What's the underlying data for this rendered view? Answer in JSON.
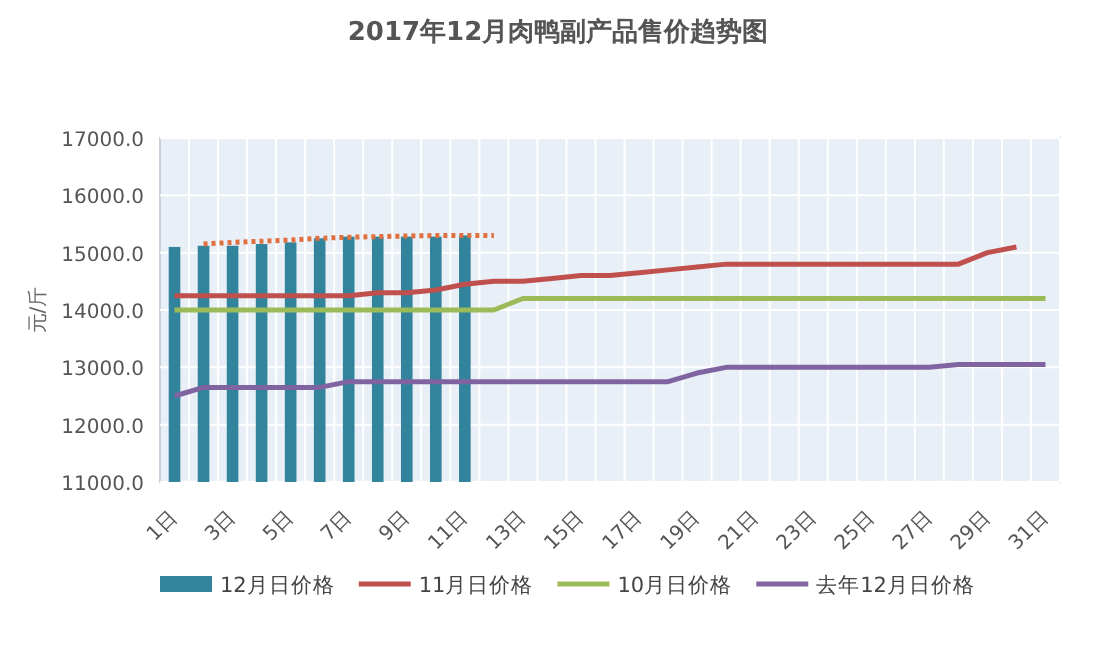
{
  "chart_data": {
    "type": "bar",
    "title": "2017年12月肉鸭副产品售价趋势图",
    "ylabel": "元/斤",
    "categories": [
      "1日",
      null,
      "3日",
      null,
      "5日",
      null,
      "7日",
      null,
      "9日",
      null,
      "11日",
      null,
      "13日",
      null,
      "15日",
      null,
      "17日",
      null,
      "19日",
      null,
      "21日",
      null,
      "23日",
      null,
      "25日",
      null,
      "27日",
      null,
      "29日",
      null,
      "31日"
    ],
    "series": [
      {
        "name": "12月日价格",
        "color": "#31849b",
        "values": [
          15100,
          15120,
          15120,
          15150,
          15180,
          15250,
          15280,
          15280,
          15280,
          15280,
          15300,
          null,
          null,
          null,
          null,
          null,
          null,
          null,
          null,
          null,
          null,
          null,
          null,
          null,
          null,
          null,
          null,
          null,
          null,
          null,
          null
        ]
      },
      {
        "name": "11月日价格",
        "type": "line",
        "color": "#c0504d",
        "values": [
          14250,
          14250,
          14250,
          14250,
          14250,
          14250,
          14250,
          14300,
          14300,
          14350,
          14450,
          14500,
          14500,
          14550,
          14600,
          14600,
          14650,
          14700,
          14750,
          14800,
          14800,
          14800,
          14800,
          14800,
          14800,
          14800,
          14800,
          14800,
          15000,
          15100,
          null
        ]
      },
      {
        "name": "10月日价格",
        "type": "line",
        "color": "#9bbb59",
        "values": [
          14000,
          14000,
          14000,
          14000,
          14000,
          14000,
          14000,
          14000,
          14000,
          14000,
          14000,
          14000,
          14200,
          14200,
          14200,
          14200,
          14200,
          14200,
          14200,
          14200,
          14200,
          14200,
          14200,
          14200,
          14200,
          14200,
          14200,
          14200,
          14200,
          14200,
          14200
        ]
      },
      {
        "name": "去年12月日价格",
        "type": "line",
        "color": "#8064a2",
        "values": [
          12500,
          12650,
          12650,
          12650,
          12650,
          12650,
          12750,
          12750,
          12750,
          12750,
          12750,
          12750,
          12750,
          12750,
          12750,
          12750,
          12750,
          12750,
          12900,
          13000,
          13000,
          13000,
          13000,
          13000,
          13000,
          13000,
          13000,
          13050,
          13050,
          13050,
          13050
        ]
      },
      {
        "type": "line",
        "line_style": "dotted",
        "color": "#e07040",
        "values": [
          null,
          15150,
          15180,
          15200,
          15220,
          15250,
          15270,
          15280,
          15290,
          15300,
          15300,
          15300,
          null,
          null,
          null,
          null,
          null,
          null,
          null,
          null,
          null,
          null,
          null,
          null,
          null,
          null,
          null,
          null,
          null,
          null,
          null
        ]
      }
    ],
    "ylim": [
      11000,
      17000
    ],
    "yticks": [
      {
        "value": 11000,
        "label": "11000.0"
      },
      {
        "value": 12000,
        "label": "12000.0"
      },
      {
        "value": 13000,
        "label": "13000.0"
      },
      {
        "value": 14000,
        "label": "14000.0"
      },
      {
        "value": 15000,
        "label": "15000.0"
      },
      {
        "value": 16000,
        "label": "16000.0"
      },
      {
        "value": 17000,
        "label": "17000.0"
      }
    ],
    "grid": true,
    "legend": "bottom"
  }
}
